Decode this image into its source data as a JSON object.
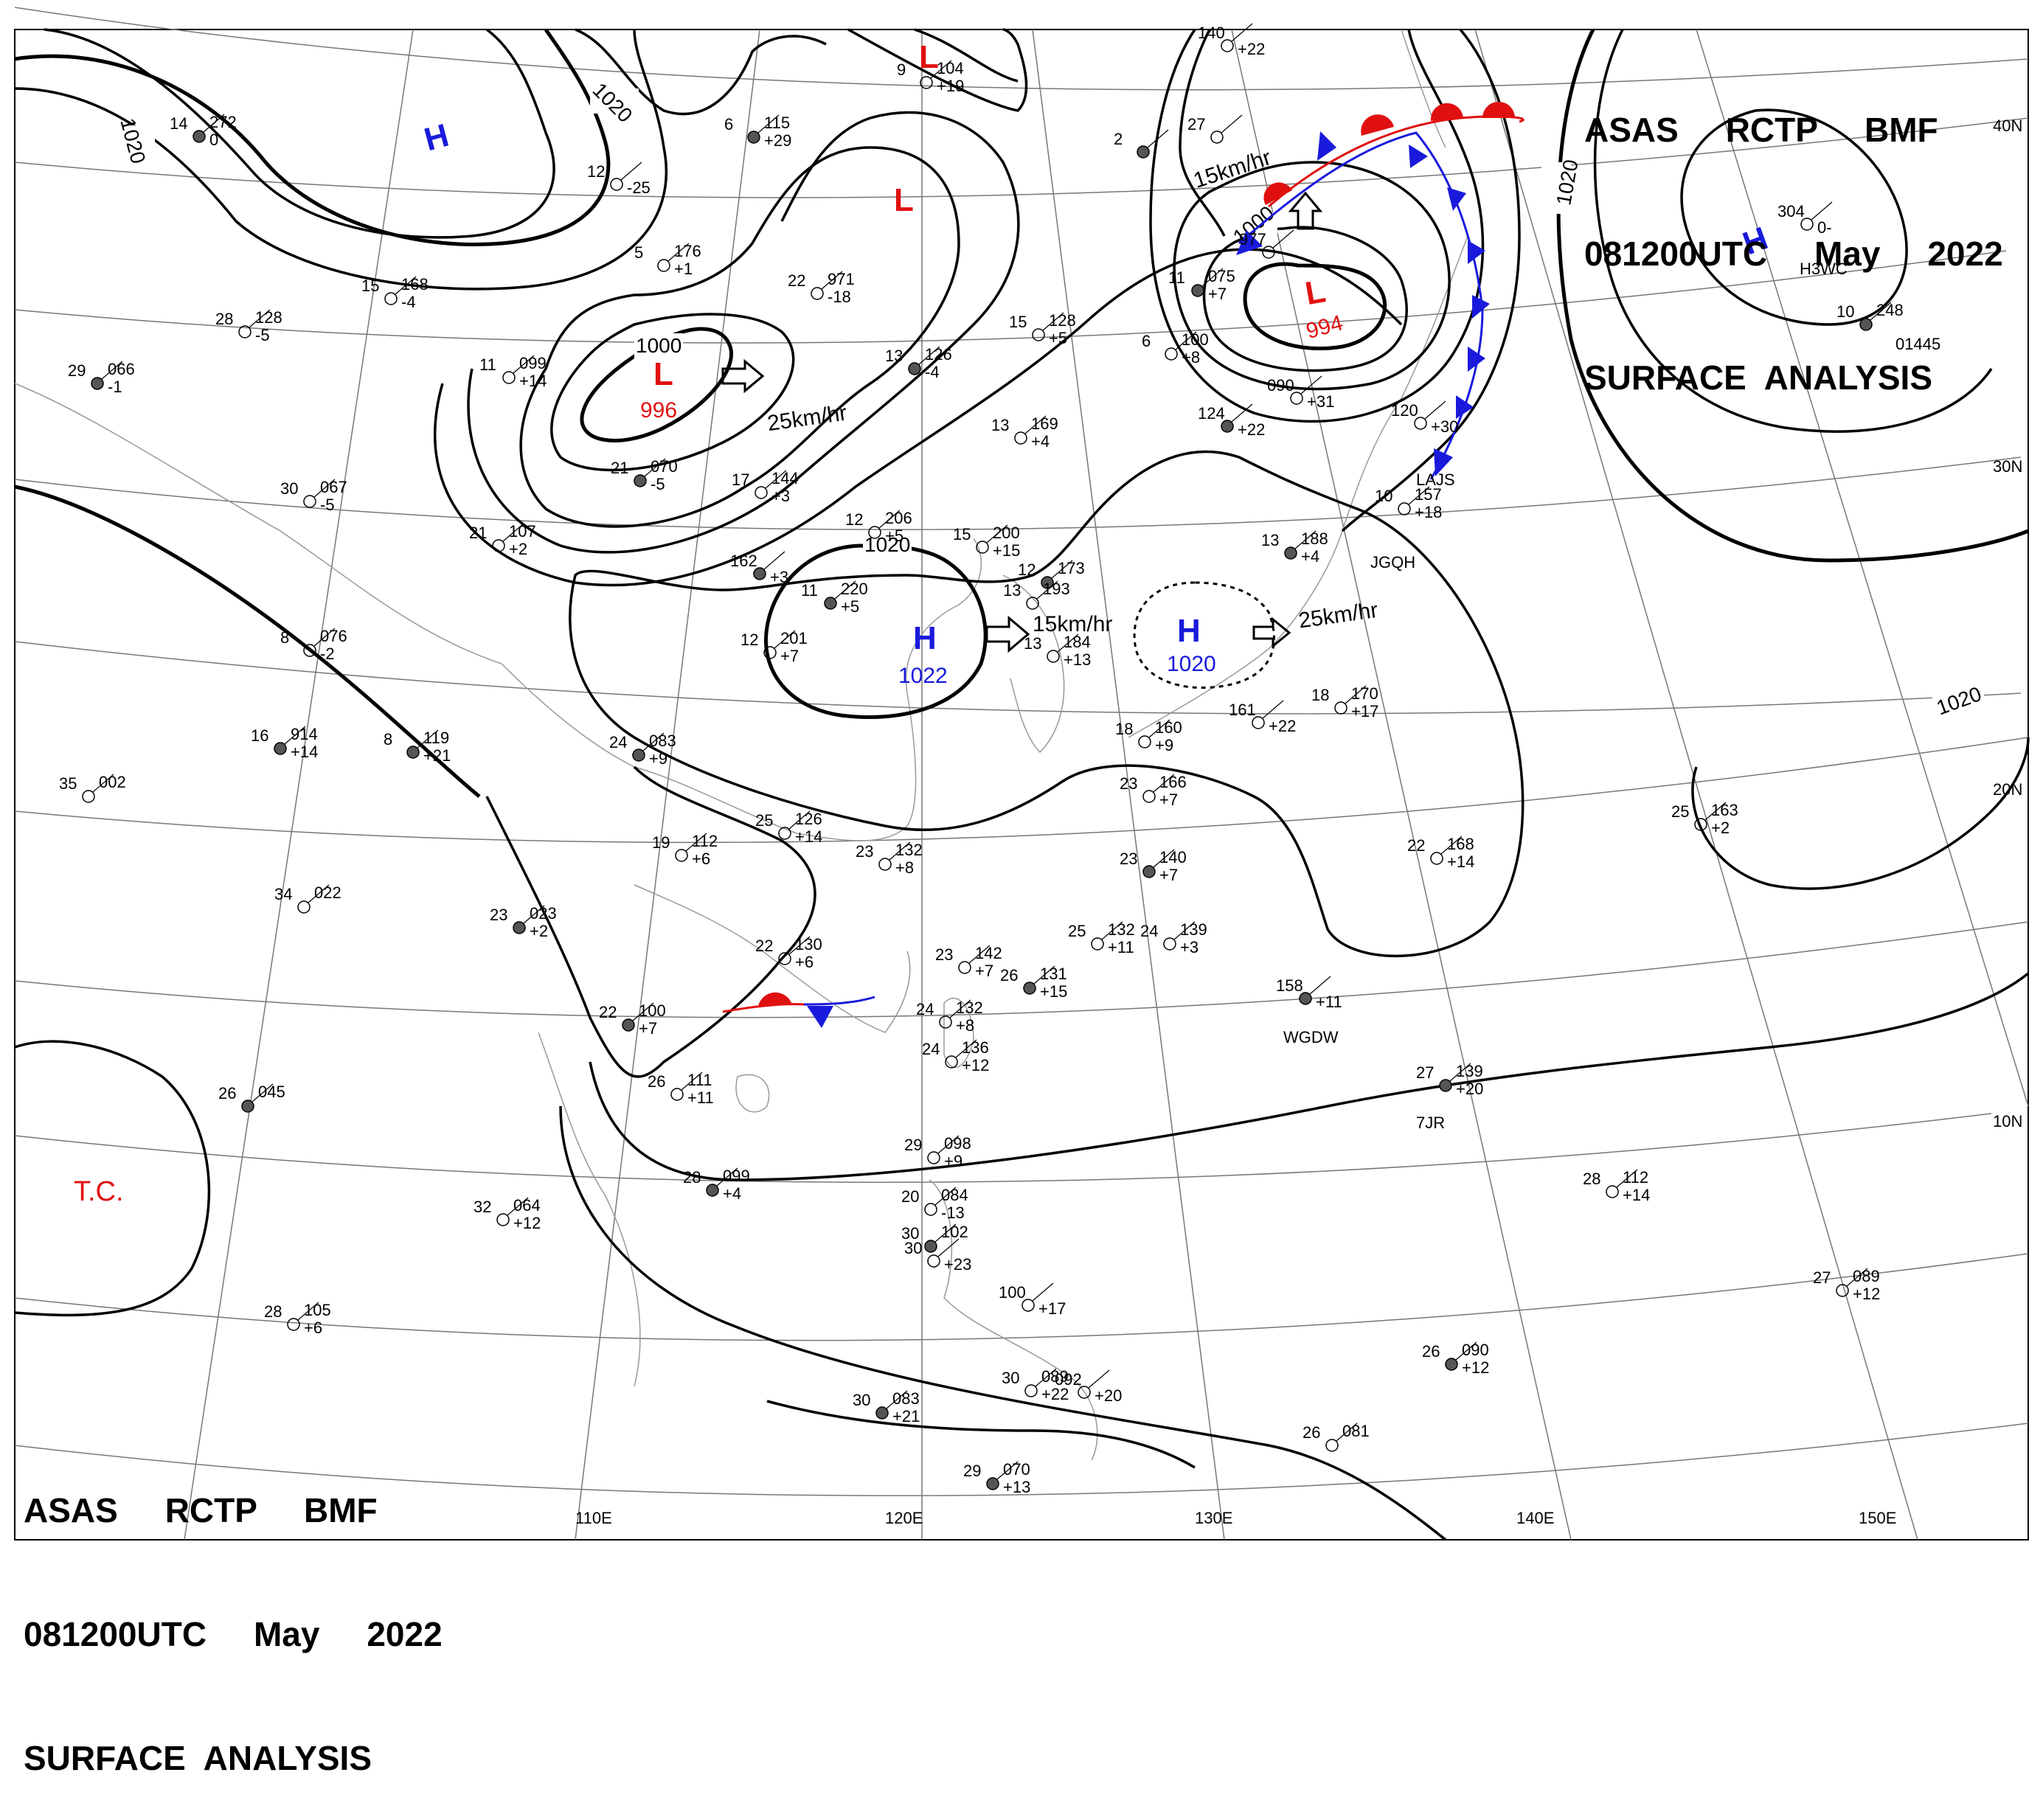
{
  "header": {
    "line1": "ASAS     RCTP     BMF",
    "line2": "081200UTC     May     2022",
    "line3": "SURFACE  ANALYSIS"
  },
  "latitudes": [
    "40N",
    "30N",
    "20N",
    "10N"
  ],
  "longitudes": [
    "110E",
    "120E",
    "130E",
    "140E",
    "150E"
  ],
  "pressure_centers": [
    {
      "type": "H",
      "color": "#1a1adc",
      "value": ""
    },
    {
      "type": "L",
      "color": "#e01010",
      "value": ""
    },
    {
      "type": "L",
      "color": "#e01010",
      "value": ""
    },
    {
      "type": "L",
      "color": "#e01010",
      "value": "996"
    },
    {
      "type": "L",
      "color": "#e01010",
      "value": "994"
    },
    {
      "type": "H",
      "color": "#1a1adc",
      "value": "1022"
    },
    {
      "type": "H",
      "color": "#1a1adc",
      "value": "1020"
    },
    {
      "type": "H",
      "color": "#1a1adc",
      "value": ""
    }
  ],
  "isobar_labels": [
    "1020",
    "1020",
    "1000",
    "1020",
    "1000",
    "1020",
    "1020"
  ],
  "motion_labels": [
    "25km/hr",
    "15km/hr",
    "15km/hr",
    "25km/hr"
  ],
  "tc_label": "T.C.",
  "colors": {
    "high": "#1a1adc",
    "low": "#e01010",
    "warm_front": "#e01010",
    "cold_front": "#1a1adc",
    "isobar": "#000000"
  },
  "stations": [
    {
      "temp": "14",
      "press": "272",
      "dp": "0"
    },
    {
      "temp": "15",
      "press": "168",
      "dp": "-4"
    },
    {
      "temp": "28",
      "press": "128",
      "dp": "-5"
    },
    {
      "temp": "29",
      "press": "066",
      "dp": "-1"
    },
    {
      "temp": "30",
      "press": "067",
      "dp": "-5"
    },
    {
      "temp": "8",
      "press": "076",
      "dp": "-2"
    },
    {
      "temp": "16",
      "press": "914",
      "dp": "+14"
    },
    {
      "temp": "35",
      "press": "002",
      "dp": ""
    },
    {
      "temp": "34",
      "press": "022",
      "dp": ""
    },
    {
      "temp": "26",
      "press": "045",
      "dp": ""
    },
    {
      "temp": "28",
      "press": "105",
      "dp": "+6"
    },
    {
      "temp": "32",
      "press": "064",
      "dp": "+12"
    },
    {
      "temp": "8",
      "press": "119",
      "dp": "+21"
    },
    {
      "temp": "21",
      "press": "107",
      "dp": "+2"
    },
    {
      "temp": "11",
      "press": "099",
      "dp": "+14"
    },
    {
      "temp": "21",
      "press": "070",
      "dp": "-5"
    },
    {
      "temp": "12",
      "press": "",
      "dp": "-25"
    },
    {
      "temp": "5",
      "press": "176",
      "dp": "+1"
    },
    {
      "temp": "6",
      "press": "115",
      "dp": "+29"
    },
    {
      "temp": "9",
      "press": "104",
      "dp": "+19"
    },
    {
      "temp": "22",
      "press": "971",
      "dp": "-18"
    },
    {
      "temp": "13",
      "press": "126",
      "dp": "-4"
    },
    {
      "temp": "15",
      "press": "128",
      "dp": "+5"
    },
    {
      "temp": "17",
      "press": "144",
      "dp": "+3"
    },
    {
      "temp": "162",
      "press": "",
      "dp": "+3"
    },
    {
      "temp": "12",
      "press": "206",
      "dp": "+5"
    },
    {
      "temp": "15",
      "press": "200",
      "dp": "+15"
    },
    {
      "temp": "11",
      "press": "220",
      "dp": "+5"
    },
    {
      "temp": "12",
      "press": "201",
      "dp": "+7"
    },
    {
      "temp": "13",
      "press": "169",
      "dp": "+4"
    },
    {
      "temp": "12",
      "press": "173",
      "dp": ""
    },
    {
      "temp": "13",
      "press": "193",
      "dp": ""
    },
    {
      "temp": "13",
      "press": "184",
      "dp": "+13"
    },
    {
      "temp": "24",
      "press": "083",
      "dp": "+9"
    },
    {
      "temp": "25",
      "press": "126",
      "dp": "+14"
    },
    {
      "temp": "19",
      "press": "112",
      "dp": "+6"
    },
    {
      "temp": "23",
      "press": "023",
      "dp": "+2"
    },
    {
      "temp": "23",
      "press": "132",
      "dp": "+8"
    },
    {
      "temp": "22",
      "press": "130",
      "dp": "+6"
    },
    {
      "temp": "22",
      "press": "100",
      "dp": "+7"
    },
    {
      "temp": "26",
      "press": "111",
      "dp": "+11"
    },
    {
      "temp": "23",
      "press": "142",
      "dp": "+7"
    },
    {
      "temp": "26",
      "press": "131",
      "dp": "+15"
    },
    {
      "temp": "24",
      "press": "132",
      "dp": "+8"
    },
    {
      "temp": "24",
      "press": "136",
      "dp": "+12"
    },
    {
      "temp": "28",
      "press": "099",
      "dp": "+4"
    },
    {
      "temp": "29",
      "press": "098",
      "dp": "+9"
    },
    {
      "temp": "20",
      "press": "084",
      "dp": "-13"
    },
    {
      "temp": "30",
      "press": "102",
      "dp": ""
    },
    {
      "temp": "30",
      "press": "",
      "dp": "+23"
    },
    {
      "temp": "100",
      "press": "",
      "dp": "+17"
    },
    {
      "temp": "30",
      "press": "083",
      "dp": "+21"
    },
    {
      "temp": "30",
      "press": "089",
      "dp": "+22"
    },
    {
      "temp": "092",
      "press": "",
      "dp": "+20"
    },
    {
      "temp": "29",
      "press": "070",
      "dp": "+13"
    },
    {
      "temp": "18",
      "press": "160",
      "dp": "+9"
    },
    {
      "temp": "23",
      "press": "166",
      "dp": "+7"
    },
    {
      "temp": "23",
      "press": "140",
      "dp": "+7"
    },
    {
      "temp": "25",
      "press": "132",
      "dp": "+11"
    },
    {
      "temp": "24",
      "press": "139",
      "dp": "+3"
    },
    {
      "temp": "158",
      "press": "",
      "dp": "+11"
    },
    {
      "temp": "161",
      "press": "",
      "dp": "+22"
    },
    {
      "temp": "18",
      "press": "170",
      "dp": "+17"
    },
    {
      "temp": "13",
      "press": "188",
      "dp": "+4"
    },
    {
      "temp": "10",
      "press": "157",
      "dp": "+18"
    },
    {
      "temp": "120",
      "press": "",
      "dp": "+30"
    },
    {
      "temp": "124",
      "press": "",
      "dp": "+22"
    },
    {
      "temp": "090",
      "press": "",
      "dp": "+31"
    },
    {
      "temp": "6",
      "press": "100",
      "dp": "+8"
    },
    {
      "temp": "11",
      "press": "075",
      "dp": "+7"
    },
    {
      "temp": "977",
      "press": "",
      "dp": ""
    },
    {
      "temp": "140",
      "press": "",
      "dp": "+22"
    },
    {
      "temp": "2",
      "press": "",
      "dp": ""
    },
    {
      "temp": "27",
      "press": "",
      "dp": ""
    },
    {
      "temp": "304",
      "press": "",
      "dp": "0-"
    },
    {
      "temp": "10",
      "press": "248",
      "dp": ""
    },
    {
      "temp": "22",
      "press": "168",
      "dp": "+14"
    },
    {
      "temp": "25",
      "press": "163",
      "dp": "+2"
    },
    {
      "temp": "27",
      "press": "139",
      "dp": "+20"
    },
    {
      "temp": "28",
      "press": "112",
      "dp": "+14"
    },
    {
      "temp": "27",
      "press": "089",
      "dp": "+12"
    },
    {
      "temp": "26",
      "press": "090",
      "dp": "+12"
    },
    {
      "temp": "26",
      "press": "081",
      "dp": ""
    }
  ],
  "call_signs": [
    "JGQH",
    "LAJS",
    "WGDW",
    "7JR",
    "H3WC",
    "01445"
  ]
}
